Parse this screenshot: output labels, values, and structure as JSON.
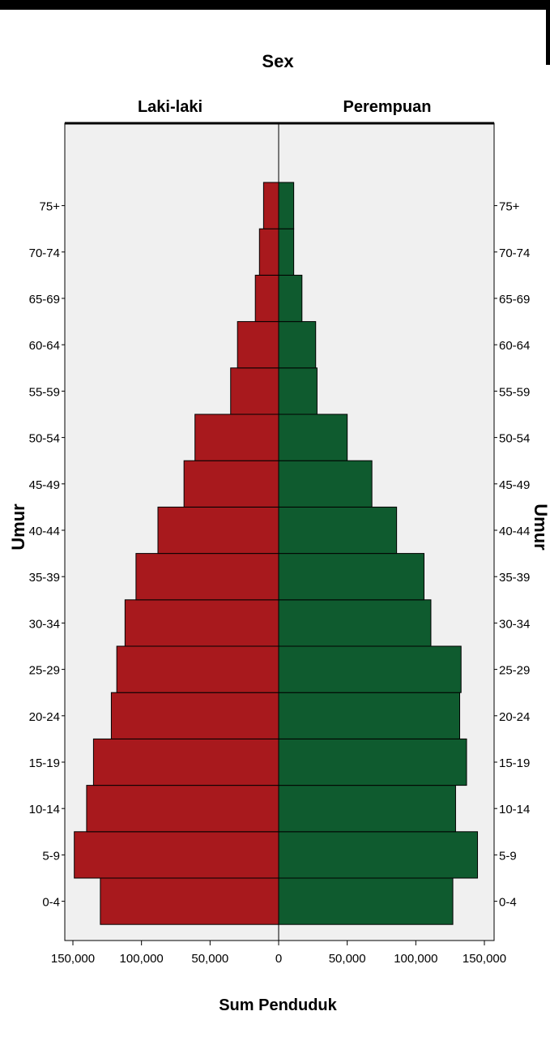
{
  "chart_data": {
    "type": "bar",
    "orientation": "horizontal-population-pyramid",
    "title": "Sex",
    "panels": [
      "Laki-laki",
      "Perempuan"
    ],
    "categories": [
      "0-4",
      "5-9",
      "10-14",
      "15-19",
      "20-24",
      "25-29",
      "30-34",
      "35-39",
      "40-44",
      "45-49",
      "50-54",
      "55-59",
      "60-64",
      "65-69",
      "70-74",
      "75+"
    ],
    "series": [
      {
        "name": "Laki-laki",
        "color": "#a8191d",
        "values": [
          130000,
          149000,
          140000,
          135000,
          122000,
          118000,
          112000,
          104000,
          88000,
          69000,
          61000,
          35000,
          30000,
          17000,
          14000,
          11000
        ]
      },
      {
        "name": "Perempuan",
        "color": "#0f5b2f",
        "values": [
          127000,
          145000,
          129000,
          137000,
          132000,
          133000,
          111000,
          106000,
          86000,
          68000,
          50000,
          28000,
          27000,
          17000,
          11000,
          11000
        ]
      }
    ],
    "xlabel": "Sum Penduduk",
    "ylabel": "Umur",
    "xticks": [
      150000,
      100000,
      50000,
      0,
      50000,
      100000,
      150000
    ],
    "xtick_labels": [
      "150,000",
      "100,000",
      "50,000",
      "0",
      "50,000",
      "100,000",
      "150,000"
    ],
    "xlim": [
      -150000,
      150000
    ],
    "background": "#f0f0f0"
  }
}
